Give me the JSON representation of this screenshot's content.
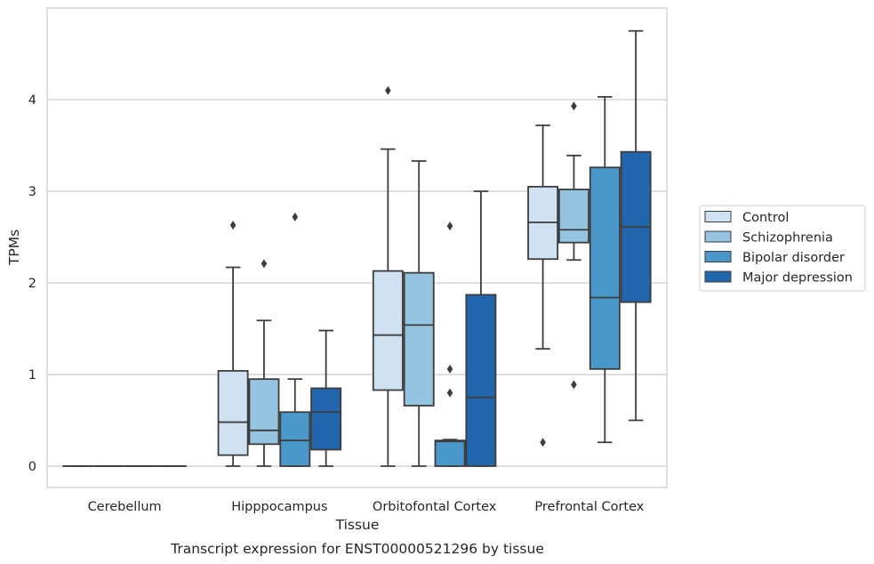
{
  "chart_data": {
    "type": "box",
    "title": "",
    "caption": "Transcript expression for ENST00000521296 by tissue",
    "xlabel": "Tissue",
    "ylabel": "TPMs",
    "ylim": [
      -0.23,
      5.0
    ],
    "yticks": [
      0,
      1,
      2,
      3,
      4
    ],
    "ytick_labels": [
      "0",
      "1",
      "2",
      "3",
      "4"
    ],
    "grid": "horizontal",
    "legend_position": "right",
    "categories": [
      "Cerebellum",
      "Hipppocampus",
      "Orbitofontal Cortex",
      "Prefrontal Cortex"
    ],
    "series": [
      {
        "name": "Control",
        "color": "#d0e1f2",
        "boxes": [
          {
            "q1": 0,
            "median": 0,
            "q3": 0,
            "whisker_low": 0,
            "whisker_high": 0,
            "outliers": []
          },
          {
            "q1": 0.12,
            "median": 0.48,
            "q3": 1.04,
            "whisker_low": 0,
            "whisker_high": 2.17,
            "outliers": [
              2.63
            ]
          },
          {
            "q1": 0.83,
            "median": 1.43,
            "q3": 2.13,
            "whisker_low": 0,
            "whisker_high": 3.46,
            "outliers": [
              4.1
            ]
          },
          {
            "q1": 2.26,
            "median": 2.66,
            "q3": 3.05,
            "whisker_low": 1.28,
            "whisker_high": 3.72,
            "outliers": [
              0.26
            ]
          }
        ]
      },
      {
        "name": "Schizophrenia",
        "color": "#94c4df",
        "boxes": [
          {
            "q1": 0,
            "median": 0,
            "q3": 0,
            "whisker_low": 0,
            "whisker_high": 0,
            "outliers": []
          },
          {
            "q1": 0.24,
            "median": 0.39,
            "q3": 0.95,
            "whisker_low": 0,
            "whisker_high": 1.59,
            "outliers": [
              2.21
            ]
          },
          {
            "q1": 0.66,
            "median": 1.54,
            "q3": 2.11,
            "whisker_low": 0,
            "whisker_high": 3.33,
            "outliers": []
          },
          {
            "q1": 2.44,
            "median": 2.58,
            "q3": 3.02,
            "whisker_low": 2.25,
            "whisker_high": 3.39,
            "outliers": [
              3.93,
              0.89
            ]
          }
        ]
      },
      {
        "name": "Bipolar disorder",
        "color": "#4a98c9",
        "boxes": [
          {
            "q1": 0,
            "median": 0,
            "q3": 0,
            "whisker_low": 0,
            "whisker_high": 0,
            "outliers": []
          },
          {
            "q1": 0,
            "median": 0.28,
            "q3": 0.59,
            "whisker_low": 0,
            "whisker_high": 0.95,
            "outliers": [
              2.72
            ]
          },
          {
            "q1": 0,
            "median": 0.27,
            "q3": 0.28,
            "whisker_low": 0,
            "whisker_high": 0.29,
            "outliers": [
              2.62,
              1.06,
              0.8
            ]
          },
          {
            "q1": 1.06,
            "median": 1.84,
            "q3": 3.26,
            "whisker_low": 0.26,
            "whisker_high": 4.03,
            "outliers": []
          }
        ]
      },
      {
        "name": "Major depression",
        "color": "#2166ac",
        "boxes": [
          {
            "q1": 0,
            "median": 0,
            "q3": 0,
            "whisker_low": 0,
            "whisker_high": 0,
            "outliers": []
          },
          {
            "q1": 0.18,
            "median": 0.59,
            "q3": 0.85,
            "whisker_low": 0,
            "whisker_high": 1.48,
            "outliers": []
          },
          {
            "q1": 0,
            "median": 0.75,
            "q3": 1.87,
            "whisker_low": 0,
            "whisker_high": 3.0,
            "outliers": []
          },
          {
            "q1": 1.79,
            "median": 2.61,
            "q3": 3.43,
            "whisker_low": 0.5,
            "whisker_high": 4.75,
            "outliers": []
          }
        ]
      }
    ]
  }
}
